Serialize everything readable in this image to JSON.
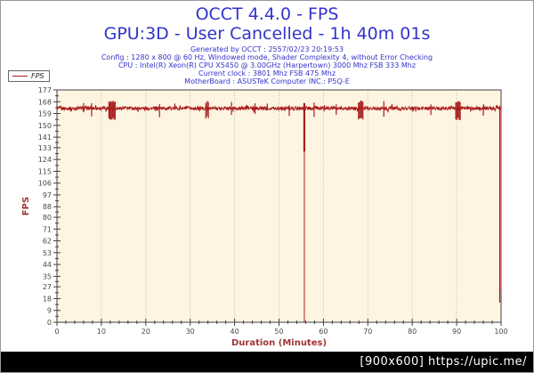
{
  "header": {
    "title": "OCCT 4.4.0 - FPS",
    "subtitle": "GPU:3D - User Cancelled - 1h 40m 01s",
    "info_lines": [
      "Generated by OCCT : 2557/02/23 20:19:53",
      "Config : 1280 x 800 @ 60 Hz, Windowed mode, Shader Complexity 4, without Error Checking",
      "CPU : Intel(R) Xeon(R) CPU X5450 @ 3.00GHz (Harpertown) 3000 Mhz FSB 333 Mhz",
      "Current clock : 3801 Mhz FSB 475 Mhz",
      "MotherBoard : ASUSTeK Computer INC.: P5Q-E"
    ]
  },
  "legend": {
    "label": "FPS"
  },
  "footer": {
    "watermark": "[900x600] https://upic.me/"
  },
  "colors": {
    "title_blue": "#3333cc",
    "plot_bg": "#fdf5e2",
    "grid": "#b9b9a6",
    "axis": "#404040",
    "tick_label": "#4a4a42",
    "axis_title": "#a03434",
    "line": "#aa1c1c",
    "footer_bg": "#000000",
    "footer_text": "#ffffff"
  },
  "chart_data": {
    "type": "line",
    "title": "OCCT 4.4.0 - FPS",
    "series_name": "FPS",
    "xlabel": "Duration (Minutes)",
    "ylabel": "FPS",
    "xlim": [
      0,
      100
    ],
    "ylim": [
      0,
      177
    ],
    "x_ticks": [
      0,
      10,
      20,
      30,
      40,
      50,
      60,
      70,
      80,
      90,
      100
    ],
    "x_minor_step": 2,
    "y_ticks": [
      177,
      168,
      159,
      150,
      141,
      133,
      124,
      115,
      106,
      97,
      88,
      80,
      71,
      62,
      53,
      44,
      35,
      27,
      18,
      9,
      0
    ],
    "grid": "vertical-dotted",
    "legend_position": "top-left",
    "baseline_fps": 163,
    "noise_amplitude": 1.3,
    "events": [
      {
        "minute": 6.0,
        "low": 159,
        "high": 166
      },
      {
        "minute": 7.8,
        "low": 157,
        "high": 167
      },
      {
        "minute": 12.4,
        "low": 155,
        "high": 168,
        "width": 1.4
      },
      {
        "minute": 23.1,
        "low": 157,
        "high": 167
      },
      {
        "minute": 33.8,
        "low": 156,
        "high": 168,
        "width": 0.6
      },
      {
        "minute": 39.3,
        "low": 157,
        "high": 167
      },
      {
        "minute": 44.6,
        "low": 158,
        "high": 166
      },
      {
        "minute": 52.3,
        "low": 158,
        "high": 166
      },
      {
        "minute": 55.7,
        "low": 0,
        "high": 167,
        "kind": "drop-to-zero"
      },
      {
        "minute": 57.9,
        "low": 156,
        "high": 167
      },
      {
        "minute": 62.9,
        "low": 158,
        "high": 166
      },
      {
        "minute": 68.4,
        "low": 155,
        "high": 168,
        "width": 1.0
      },
      {
        "minute": 73.6,
        "low": 156,
        "high": 168
      },
      {
        "minute": 84.2,
        "low": 158,
        "high": 166
      },
      {
        "minute": 90.3,
        "low": 155,
        "high": 168,
        "width": 1.0
      },
      {
        "minute": 96.0,
        "low": 158,
        "high": 166
      },
      {
        "minute": 99.7,
        "low": 15,
        "high": 165,
        "kind": "end-drop"
      }
    ]
  }
}
